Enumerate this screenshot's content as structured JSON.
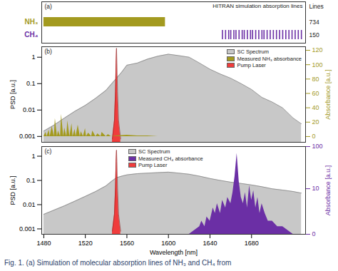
{
  "caption": "Fig. 1. (a) Simulation of molecular absorption lines of NH₃ and CH₄ from",
  "chart_data": [
    {
      "type": "bar",
      "orientation": "horizontal",
      "panel_label": "(a)",
      "title": "HITRAN simulation absorption lines",
      "count_label": "Lines",
      "categories": [
        "NH₃",
        "CH₄"
      ],
      "xlim": [
        1478,
        1732
      ],
      "tick_labels": "y",
      "series": [
        {
          "name": "NH₃",
          "color": "#a39a1f",
          "line_count": 734,
          "range": [
            1480,
            1597
          ]
        },
        {
          "name": "CH₄",
          "color": "#6b2fa5",
          "line_count": 150,
          "line_positions": [
            1652,
            1655,
            1658,
            1660,
            1663,
            1665,
            1668,
            1671,
            1673,
            1676,
            1679,
            1681,
            1684,
            1687,
            1690,
            1692,
            1695,
            1698,
            1701,
            1704,
            1707,
            1710,
            1713,
            1716,
            1719,
            1722,
            1725,
            1728
          ]
        }
      ]
    },
    {
      "type": "area",
      "panel_label": "(b)",
      "ylabel": "PSD [a.u.]",
      "y2label": "Absorbance [a.u.]",
      "log": "y",
      "xlim": [
        1478,
        1732
      ],
      "ylim": [
        0.0006,
        2.5
      ],
      "yticks": [
        0.001,
        0.01,
        0.1,
        1
      ],
      "y2lim": [
        -8,
        125
      ],
      "y2ticks": [
        0,
        20,
        40,
        60,
        80,
        100,
        120
      ],
      "tick_labels": "y",
      "legend": "top-right",
      "series": [
        {
          "name": "SC Spectrum",
          "color": "#c8c8c8",
          "x": [
            1480,
            1490,
            1500,
            1510,
            1520,
            1530,
            1540,
            1545,
            1550,
            1555,
            1560,
            1570,
            1580,
            1590,
            1600,
            1610,
            1620,
            1630,
            1640,
            1650,
            1660,
            1670,
            1680,
            1690,
            1700,
            1710,
            1720,
            1728
          ],
          "values": [
            0.0016,
            0.0027,
            0.005,
            0.009,
            0.015,
            0.028,
            0.056,
            0.095,
            0.16,
            0.27,
            0.5,
            0.6,
            0.85,
            1.1,
            1.3,
            1.15,
            1.0,
            0.6,
            0.35,
            0.23,
            0.16,
            0.1,
            0.06,
            0.03,
            0.02,
            0.012,
            0.005,
            0.003
          ]
        },
        {
          "name": "Measured NH₃ absorbance",
          "color": "#a39a1f",
          "axis": "y2",
          "x": [
            1480,
            1482,
            1483,
            1485,
            1486,
            1488,
            1490,
            1491,
            1493,
            1494,
            1496,
            1497,
            1499,
            1500,
            1502,
            1503,
            1505,
            1507,
            1508,
            1510,
            1511,
            1513,
            1515,
            1516,
            1518,
            1520,
            1521,
            1523,
            1526,
            1527,
            1530,
            1532,
            1535,
            1536,
            1540,
            1542,
            1545,
            1550,
            1560,
            1570,
            1580,
            1590,
            1600
          ],
          "values": [
            0,
            6,
            0,
            9,
            0,
            14,
            0,
            25,
            0,
            8,
            0,
            31,
            0,
            12,
            0,
            22,
            0,
            18,
            0,
            10,
            0,
            16,
            0,
            7,
            0,
            11,
            0,
            5,
            0,
            8,
            0,
            4,
            0,
            6,
            0,
            3,
            0,
            1,
            2,
            1,
            1,
            0,
            0
          ]
        },
        {
          "name": "Pump Laser",
          "color": "#f03c3c",
          "x": [
            1546,
            1548,
            1549,
            1549.6,
            1550,
            1550.4,
            1551,
            1552,
            1554
          ],
          "values": [
            0.0008,
            0.004,
            0.05,
            0.6,
            2.2,
            0.6,
            0.05,
            0.004,
            0.0008
          ]
        }
      ]
    },
    {
      "type": "area",
      "panel_label": "(c)",
      "xlabel": "Wavelength [nm]",
      "ylabel": "PSD [a.u.]",
      "y2label": "Absorbance [a.u.]",
      "log": [
        "y",
        "y2"
      ],
      "xlim": [
        1478,
        1732
      ],
      "xticks": [
        1480,
        1520,
        1560,
        1600,
        1640,
        1680
      ],
      "ylim": [
        0.0006,
        2.5
      ],
      "yticks": [
        0.001,
        0.01,
        0.1,
        1
      ],
      "y2lim": [
        0,
        100
      ],
      "y2ticks": [
        0,
        10,
        100
      ],
      "legend": "top",
      "series": [
        {
          "name": "SC Spectrum",
          "color": "#c8c8c8",
          "x": [
            1480,
            1490,
            1500,
            1510,
            1520,
            1530,
            1540,
            1545,
            1550,
            1555,
            1560,
            1570,
            1580,
            1590,
            1600,
            1610,
            1620,
            1630,
            1640,
            1650,
            1660,
            1670,
            1680,
            1690,
            1700,
            1710,
            1720,
            1728
          ],
          "values": [
            0.004,
            0.006,
            0.009,
            0.014,
            0.022,
            0.035,
            0.06,
            0.09,
            0.13,
            0.15,
            0.17,
            0.19,
            0.2,
            0.21,
            0.22,
            0.2,
            0.18,
            0.15,
            0.12,
            0.1,
            0.085,
            0.075,
            0.065,
            0.055,
            0.045,
            0.04,
            0.035,
            0.03
          ]
        },
        {
          "name": "Measured CH₄ absorbance",
          "color": "#6b2fa5",
          "axis": "y2",
          "x": [
            1620,
            1630,
            1632,
            1635,
            1637,
            1640,
            1643,
            1645,
            1647,
            1650,
            1652,
            1655,
            1657,
            1660,
            1662,
            1664,
            1666,
            1668,
            1670,
            1672,
            1674,
            1676,
            1678,
            1680,
            1682,
            1684,
            1686,
            1688,
            1690,
            1693,
            1696,
            1700,
            1705,
            1710,
            1720,
            1730
          ],
          "values": [
            0,
            0.5,
            1,
            0.5,
            1.5,
            1,
            3,
            2,
            4,
            2,
            5,
            3,
            6,
            4,
            8,
            20,
            70,
            15,
            6,
            4,
            8,
            3,
            12,
            5,
            9,
            3,
            6,
            2,
            4,
            2,
            1,
            1,
            0.5,
            0.5,
            0,
            0
          ]
        },
        {
          "name": "Pump Laser",
          "color": "#f03c3c",
          "x": [
            1546,
            1548,
            1549,
            1549.6,
            1550,
            1550.4,
            1551,
            1552,
            1554
          ],
          "values": [
            0.0008,
            0.004,
            0.05,
            0.6,
            1.8,
            0.6,
            0.05,
            0.004,
            0.0008
          ]
        }
      ]
    }
  ]
}
